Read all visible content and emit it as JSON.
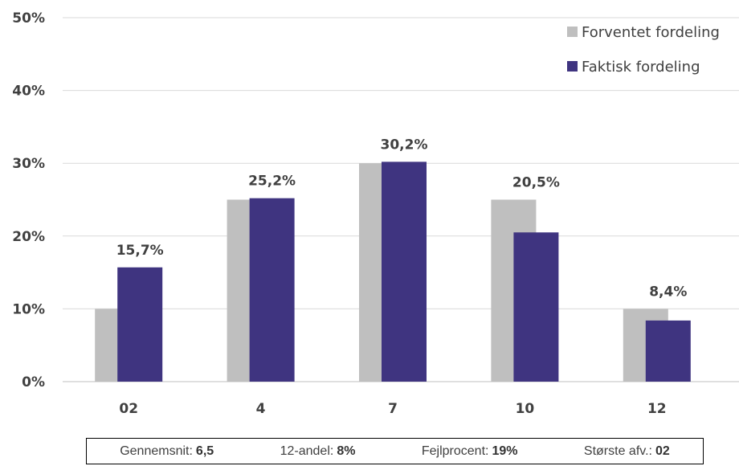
{
  "chart_data": {
    "type": "bar",
    "categories": [
      "02",
      "4",
      "7",
      "10",
      "12"
    ],
    "series": [
      {
        "name": "Forventet fordeling",
        "values": [
          10,
          25,
          30,
          25,
          10
        ],
        "color": "#bfbfbf"
      },
      {
        "name": "Faktisk fordeling",
        "values": [
          15.7,
          25.2,
          30.2,
          20.5,
          8.4
        ],
        "color": "#3f3480"
      }
    ],
    "data_labels": [
      "15,7%",
      "25,2%",
      "30,2%",
      "20,5%",
      "8,4%"
    ],
    "yticks": [
      "0%",
      "10%",
      "20%",
      "30%",
      "40%",
      "50%"
    ],
    "ylim": [
      0,
      50
    ],
    "grid": true,
    "legend_position": "top-right"
  },
  "stats": {
    "average_label": "Gennemsnit:",
    "average_value": "6,5",
    "share12_label": "12-andel:",
    "share12_value": "8%",
    "error_label": "Fejlprocent:",
    "error_value": "19%",
    "deviation_label": "Største afv.:",
    "deviation_value": "02"
  }
}
